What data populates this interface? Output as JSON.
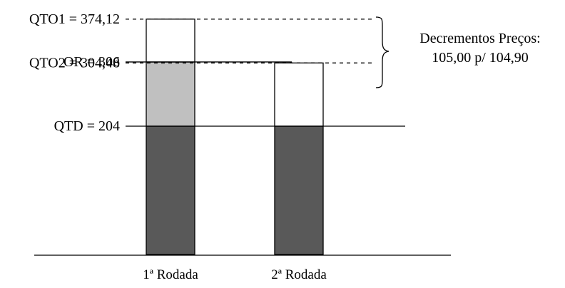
{
  "labels": {
    "qto1": "QTO1 = 374,12",
    "or": "OR = 306",
    "qto2": "QTO2 = 304,48",
    "qtd": "QTD = 204"
  },
  "annotation": {
    "line1": "Decrementos Preços:",
    "line2": "105,00 p/ 104,90"
  },
  "categories": [
    "1ª Rodada",
    "2ª Rodada"
  ],
  "bars": [
    {
      "name": "1ª Rodada",
      "segments": [
        {
          "from": 0,
          "to": 204,
          "color": "#595959"
        },
        {
          "from": 204,
          "to": 306,
          "color": "#c0c0c0"
        },
        {
          "from": 306,
          "to": 374.12,
          "color": "#ffffff"
        }
      ]
    },
    {
      "name": "2ª Rodada",
      "segments": [
        {
          "from": 0,
          "to": 204,
          "color": "#595959"
        },
        {
          "from": 204,
          "to": 304.48,
          "color": "#ffffff"
        }
      ]
    }
  ],
  "levels": {
    "qto1": 374.12,
    "or": 306,
    "qto2": 304.48,
    "qtd": 204
  },
  "colors": {
    "dark_fill": "#595959",
    "light_fill": "#c0c0c0",
    "outline": "#000000"
  }
}
